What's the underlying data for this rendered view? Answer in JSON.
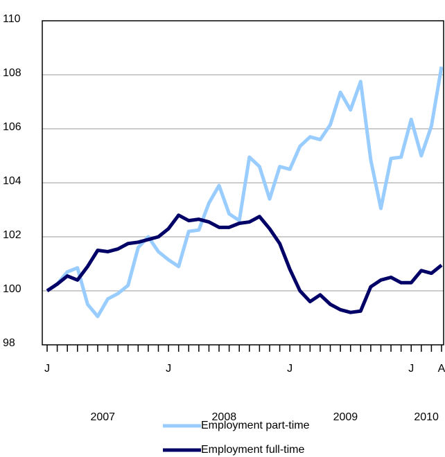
{
  "chart_data": {
    "type": "line",
    "categories": [
      "J",
      null,
      null,
      null,
      null,
      null,
      null,
      null,
      null,
      null,
      null,
      null,
      "J",
      null,
      null,
      null,
      null,
      null,
      null,
      null,
      null,
      null,
      null,
      null,
      "J",
      null,
      null,
      null,
      null,
      null,
      null,
      null,
      null,
      null,
      null,
      null,
      "J",
      null,
      null,
      "A"
    ],
    "year_labels": [
      "2007",
      "2008",
      "2009",
      "2010"
    ],
    "series": [
      {
        "name": "Employment part-time",
        "color": "#99ccff",
        "values": [
          100.0,
          100.25,
          100.7,
          100.85,
          99.5,
          99.05,
          99.7,
          99.9,
          100.2,
          101.6,
          102.0,
          101.45,
          101.15,
          100.9,
          102.2,
          102.25,
          103.25,
          103.9,
          102.85,
          102.6,
          104.95,
          104.6,
          103.4,
          104.6,
          104.5,
          105.35,
          105.7,
          105.6,
          106.15,
          107.35,
          106.7,
          107.75,
          104.85,
          103.05,
          104.9,
          104.95,
          106.35,
          105.0,
          106.1,
          108.3
        ]
      },
      {
        "name": "Employment full-time",
        "color": "#000066",
        "values": [
          100.0,
          100.25,
          100.55,
          100.4,
          100.9,
          101.5,
          101.45,
          101.55,
          101.75,
          101.8,
          101.9,
          102.0,
          102.3,
          102.8,
          102.6,
          102.65,
          102.55,
          102.35,
          102.35,
          102.5,
          102.55,
          102.75,
          102.3,
          101.75,
          100.8,
          100.0,
          99.6,
          99.85,
          99.5,
          99.3,
          99.2,
          99.25,
          100.15,
          100.4,
          100.5,
          100.3,
          100.3,
          100.75,
          100.65,
          100.95
        ]
      }
    ],
    "ylim": [
      98,
      110
    ],
    "yticks": [
      98,
      100,
      102,
      104,
      106,
      108,
      110
    ],
    "grid": true
  }
}
